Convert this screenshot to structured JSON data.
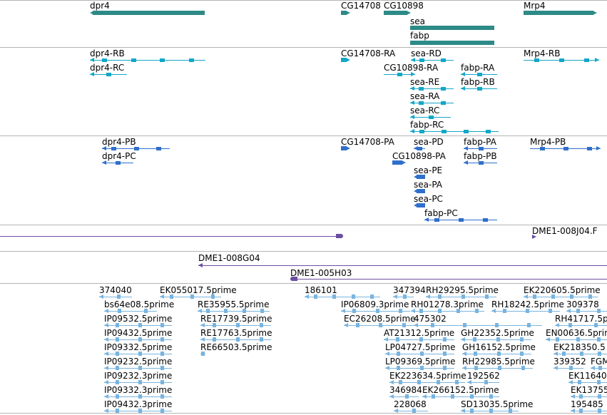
{
  "colors": {
    "gene": "#2d8b87",
    "mrna": "#13a7c7",
    "protein": "#2f6fcb",
    "clone": "#6b4ea2",
    "est": "#78b4df",
    "separator": "#b4b4b4"
  },
  "tracks": {
    "genes": {
      "features": [
        {
          "label": "dpr4"
        },
        {
          "label": "CG14708"
        },
        {
          "label": "CG10898"
        },
        {
          "label": "Mrp4"
        },
        {
          "label": "sea"
        },
        {
          "label": "fabp"
        }
      ]
    },
    "transcripts": {
      "features": [
        {
          "label": "dpr4-RB"
        },
        {
          "label": "dpr4-RC"
        },
        {
          "label": "CG14708-RA"
        },
        {
          "label": "sea-RD"
        },
        {
          "label": "CG10898-RA"
        },
        {
          "label": "fabp-RA"
        },
        {
          "label": "sea-RE"
        },
        {
          "label": "fabp-RB"
        },
        {
          "label": "sea-RA"
        },
        {
          "label": "sea-RC"
        },
        {
          "label": "fabp-RC"
        },
        {
          "label": "Mrp4-RB"
        }
      ]
    },
    "proteins": {
      "features": [
        {
          "label": "dpr4-PB"
        },
        {
          "label": "dpr4-PC"
        },
        {
          "label": "CG14708-PA"
        },
        {
          "label": "sea-PD"
        },
        {
          "label": "fabp-PA"
        },
        {
          "label": "CG10898-PA"
        },
        {
          "label": "fabp-PB"
        },
        {
          "label": "sea-PE"
        },
        {
          "label": "sea-PA"
        },
        {
          "label": "sea-PC"
        },
        {
          "label": "fabp-PC"
        },
        {
          "label": "Mrp4-PB"
        }
      ]
    },
    "clones": {
      "features": [
        {
          "label": "DME1-008J04.F"
        },
        {
          "label": "DME1-008G04"
        },
        {
          "label": "DME1-005H03"
        }
      ]
    },
    "ests": {
      "features": [
        {
          "label": "374040"
        },
        {
          "label": "EK055017.5prime"
        },
        {
          "label": "186101"
        },
        {
          "label": "347394"
        },
        {
          "label": "RH29295.5prime"
        },
        {
          "label": "EK220605.5prime"
        },
        {
          "label": "bs64e08.5prime"
        },
        {
          "label": "RE35955.5prime"
        },
        {
          "label": "IP06809.3prime"
        },
        {
          "label": "RH01278.3prime"
        },
        {
          "label": "RH18242.5prime"
        },
        {
          "label": "309378"
        },
        {
          "label": "IP09532.5prime"
        },
        {
          "label": "RE17739.5prime"
        },
        {
          "label": "EC26208.5prime"
        },
        {
          "label": "475302"
        },
        {
          "label": "RH41717.5p"
        },
        {
          "label": "IP09432.5prime"
        },
        {
          "label": "RE17763.5prime"
        },
        {
          "label": "AT21312.5prime"
        },
        {
          "label": "GH22352.5prime"
        },
        {
          "label": "EN00636.5prim"
        },
        {
          "label": "IP09332.5prime"
        },
        {
          "label": "RE66503.5prime"
        },
        {
          "label": "LP04727.5prime"
        },
        {
          "label": "GH16152.5prime"
        },
        {
          "label": "EK218350.5"
        },
        {
          "label": "IP09232.5prime"
        },
        {
          "label": "LP09369.5prime"
        },
        {
          "label": "RH22985.5prime"
        },
        {
          "label": "339352"
        },
        {
          "label": "FGM"
        },
        {
          "label": "IP09232.3prime"
        },
        {
          "label": "EK223634.5prime"
        },
        {
          "label": "192562"
        },
        {
          "label": "EK11640"
        },
        {
          "label": "IP09332.3prime"
        },
        {
          "label": "346984"
        },
        {
          "label": "EK266152.5prime"
        },
        {
          "label": "EK13755"
        },
        {
          "label": "IP09432.3prime"
        },
        {
          "label": "228068"
        },
        {
          "label": "SD13035.5prime"
        },
        {
          "label": "195485"
        }
      ]
    }
  }
}
